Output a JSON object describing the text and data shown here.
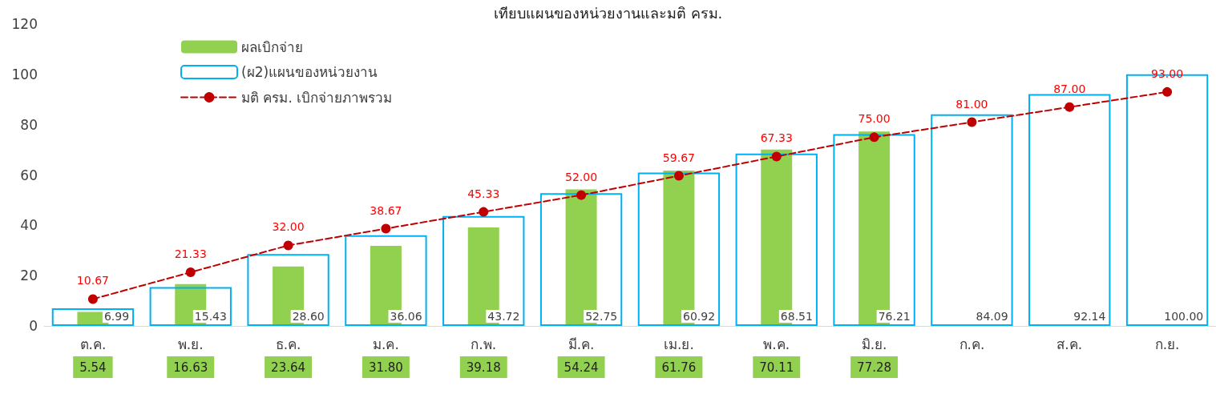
{
  "chart_data": {
    "type": "bar",
    "title": "เทียบแผนของหน่วยงานและมติ ครม.",
    "categories": [
      "ต.ค.",
      "พ.ย.",
      "ธ.ค.",
      "ม.ค.",
      "ก.พ.",
      "มี.ค.",
      "เม.ย.",
      "พ.ค.",
      "มิ.ย.",
      "ก.ค.",
      "ส.ค.",
      "ก.ย."
    ],
    "series": [
      {
        "name": "ผลเบิกจ่าย",
        "color": "#92d050",
        "values": [
          5.54,
          16.63,
          23.64,
          31.8,
          39.18,
          54.24,
          61.76,
          70.11,
          77.28,
          null,
          null,
          null
        ],
        "value_labels": [
          "5.54",
          "16.63",
          "23.64",
          "31.80",
          "39.18",
          "54.24",
          "61.76",
          "70.11",
          "77.28",
          null,
          null,
          null
        ]
      },
      {
        "name": "(ผ2)แผนของหน่วยงาน",
        "color": "#00b0f0",
        "values": [
          6.99,
          15.43,
          28.6,
          36.06,
          43.72,
          52.75,
          60.92,
          68.51,
          76.21,
          84.09,
          92.14,
          100.0
        ],
        "value_labels": [
          "6.99",
          "15.43",
          "28.60",
          "36.06",
          "43.72",
          "52.75",
          "60.92",
          "68.51",
          "76.21",
          "84.09",
          "92.14",
          "100.00"
        ]
      },
      {
        "name": "มติ ครม. เบิกจ่ายภาพรวม",
        "type": "line",
        "color": "#c00000",
        "values": [
          10.67,
          21.33,
          32.0,
          38.67,
          45.33,
          52.0,
          59.67,
          67.33,
          75.0,
          81.0,
          87.0,
          93.0
        ],
        "value_labels": [
          "10.67",
          "21.33",
          "32.00",
          "38.67",
          "45.33",
          "52.00",
          "59.67",
          "67.33",
          "75.00",
          "81.00",
          "87.00",
          "93.00"
        ]
      }
    ],
    "ylim": [
      0,
      120
    ],
    "yticks": [
      0,
      20,
      40,
      60,
      80,
      100,
      120
    ],
    "grid": false,
    "legend": "top left",
    "marker": "circle",
    "line_style": "dashed"
  }
}
